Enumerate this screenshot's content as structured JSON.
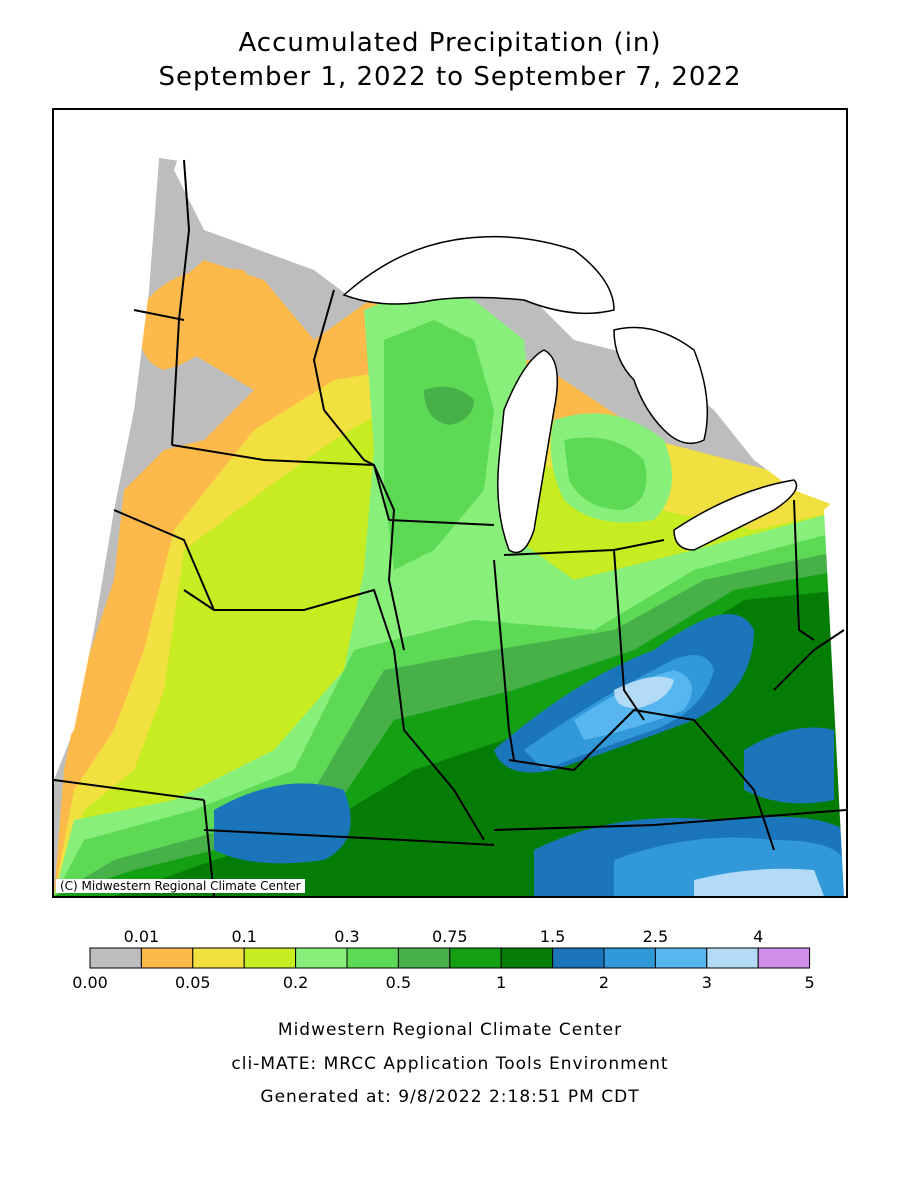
{
  "title_line1": "Accumulated Precipitation (in)",
  "title_line2": "September 1, 2022 to September 7, 2022",
  "copyright": "(C) Midwestern Regional Climate Center",
  "legend": {
    "top_labels": [
      "0.01",
      "0.1",
      "0.3",
      "0.75",
      "1.5",
      "2.5",
      "4"
    ],
    "bottom_labels": [
      "0.00",
      "0.05",
      "0.2",
      "0.5",
      "1",
      "2",
      "3",
      "5"
    ],
    "colors": [
      "#bdbdbd",
      "#fdb94a",
      "#f2e040",
      "#c8ec22",
      "#88f07a",
      "#5cda55",
      "#48b048",
      "#13a013",
      "#057d05",
      "#1b75bb",
      "#3199da",
      "#57b6f0",
      "#b3dbf8",
      "#cf8ee9"
    ]
  },
  "footer": {
    "line1": "Midwestern Regional Climate Center",
    "line2": "cli-MATE: MRCC Application Tools Environment",
    "line3": "Generated at: 9/8/2022 2:18:51 PM CDT"
  }
}
